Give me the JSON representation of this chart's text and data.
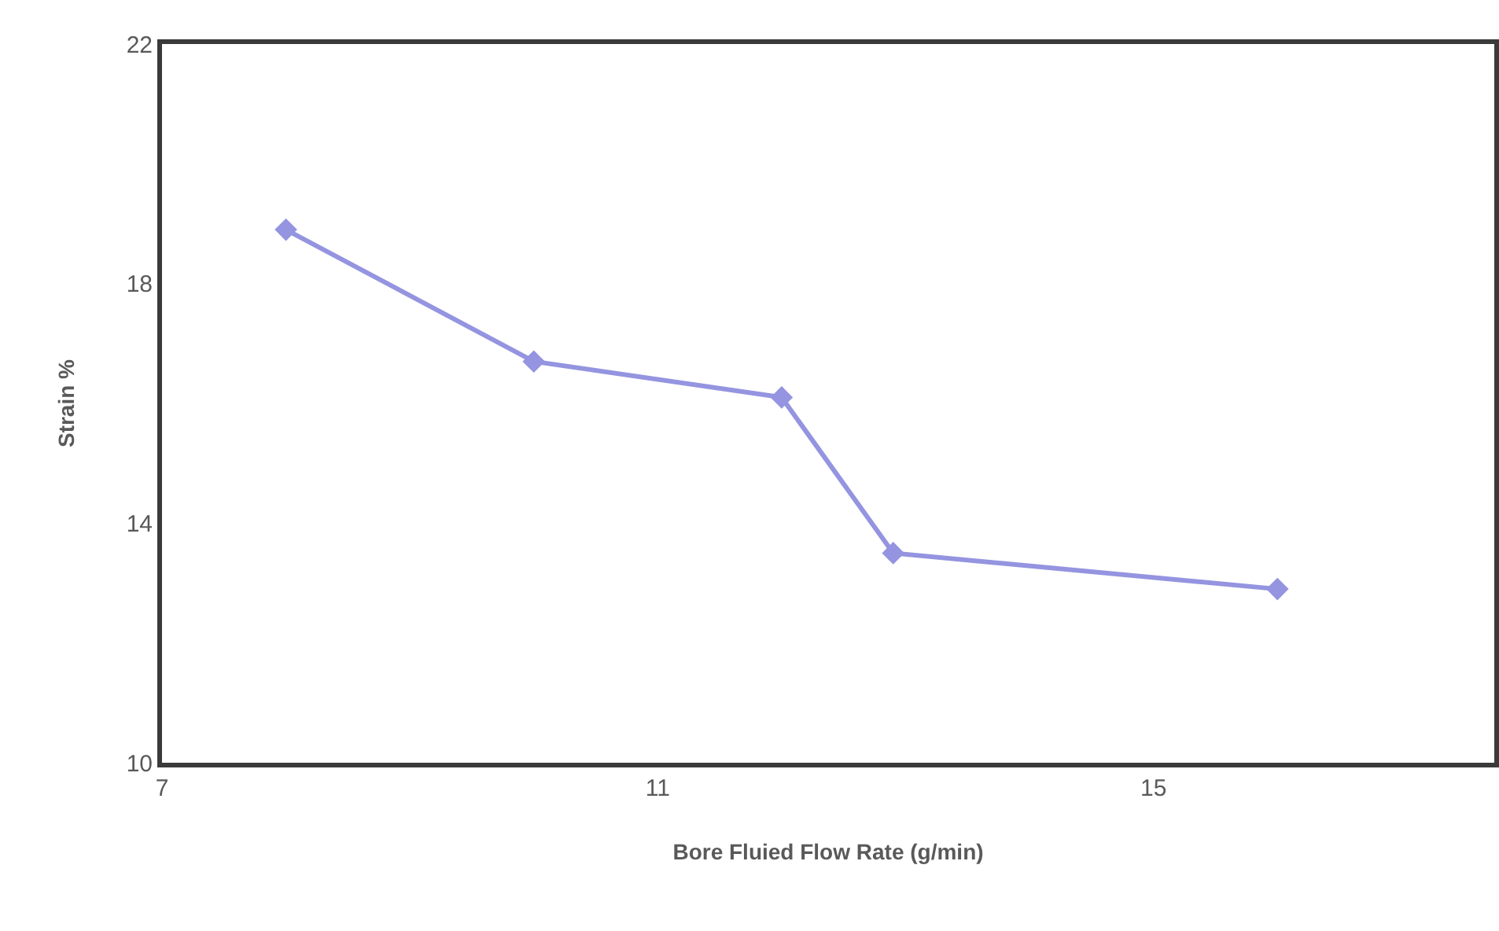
{
  "chart_data": {
    "type": "line",
    "xlabel": "Bore Fluied Flow Rate (g/min)",
    "ylabel": "Strain %",
    "x": [
      8,
      10,
      12,
      12.9,
      16
    ],
    "series": [
      {
        "color": "#9494e0",
        "values": [
          18.9,
          16.7,
          16.1,
          13.5,
          12.9
        ]
      }
    ],
    "xlim": [
      7,
      17.75
    ],
    "xticks": [
      7,
      11,
      15
    ],
    "ylim": [
      10,
      22
    ],
    "yticks": [
      10,
      14,
      18,
      22
    ],
    "grid": false,
    "legend": false,
    "marker": "diamond",
    "line_style": "solid"
  }
}
